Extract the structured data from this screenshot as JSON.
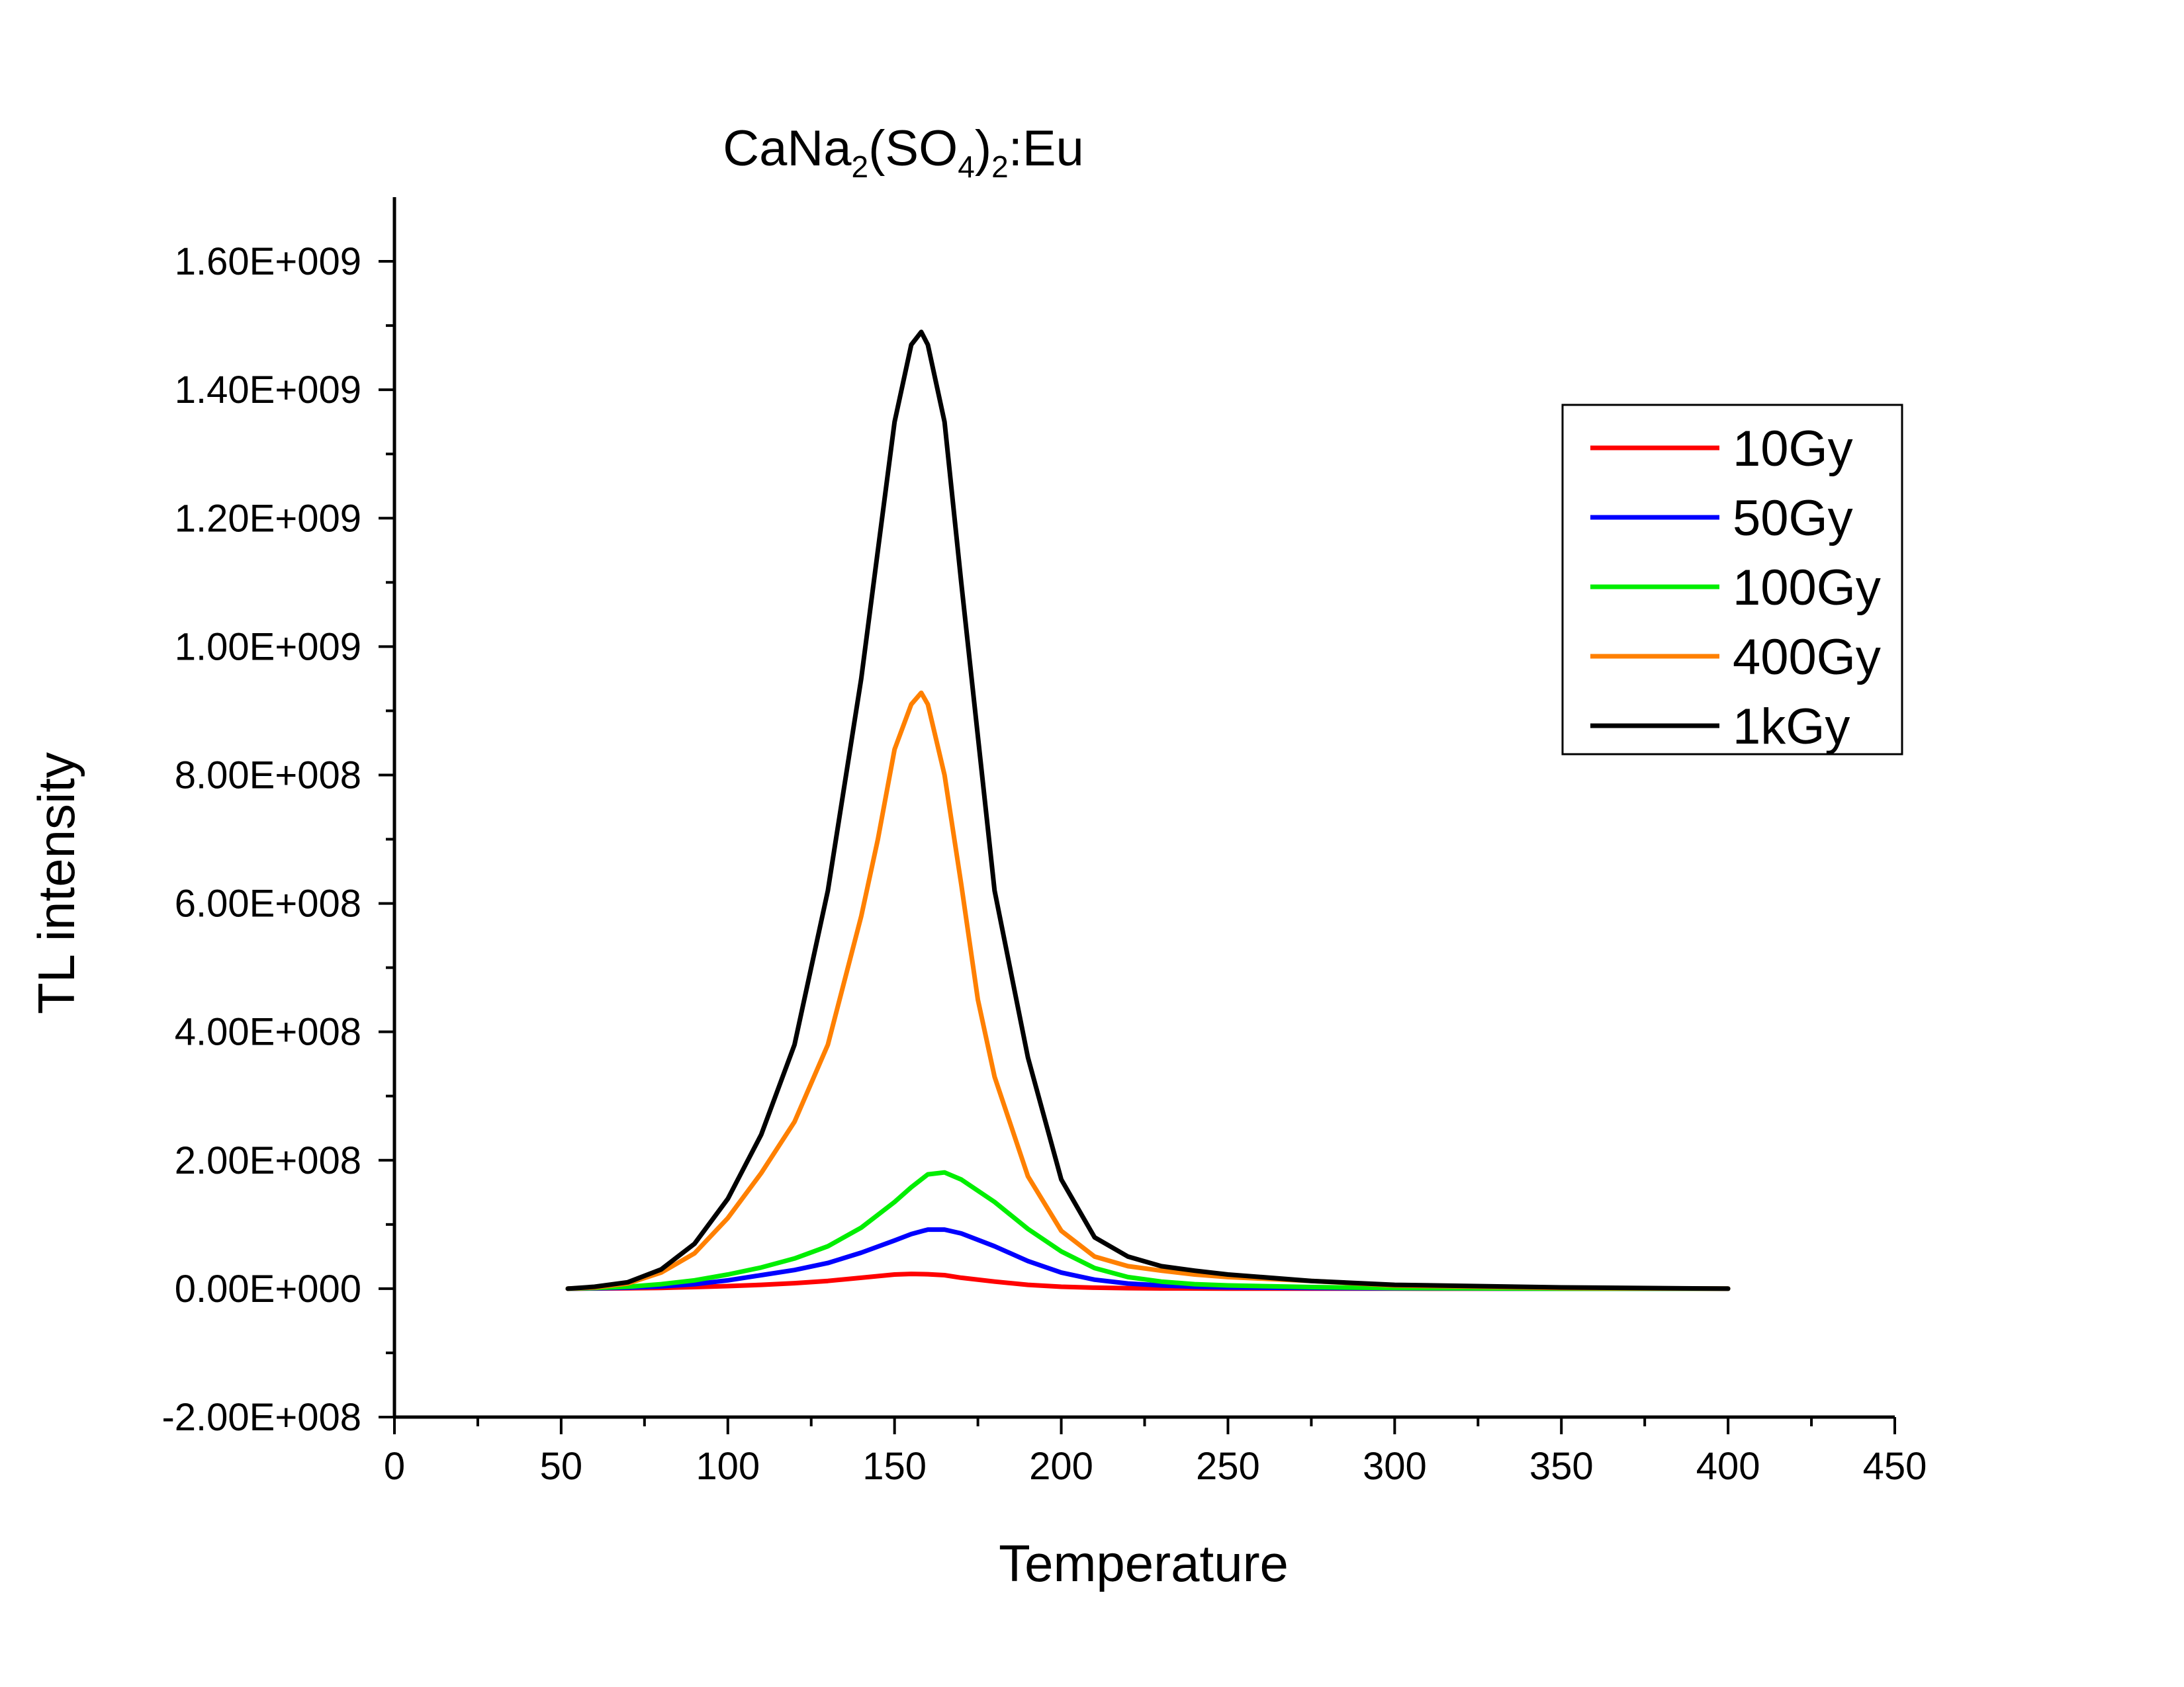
{
  "chart_data": {
    "type": "line",
    "title": {
      "parts": [
        {
          "text": "CaNa",
          "sub": false
        },
        {
          "text": "2",
          "sub": true
        },
        {
          "text": "(SO",
          "sub": false
        },
        {
          "text": "4",
          "sub": true
        },
        {
          "text": ")",
          "sub": false
        },
        {
          "text": "2",
          "sub": true
        },
        {
          "text": ":Eu",
          "sub": false
        }
      ]
    },
    "xlabel": "Temperature",
    "ylabel": "TL intensity",
    "xlim": [
      0,
      450
    ],
    "ylim": [
      -200000000,
      1700000000
    ],
    "x_ticks": [
      0,
      50,
      100,
      150,
      200,
      250,
      300,
      350,
      400,
      450
    ],
    "x_tick_labels": [
      "0",
      "50",
      "100",
      "150",
      "200",
      "250",
      "300",
      "350",
      "400",
      "450"
    ],
    "y_ticks": [
      -200000000,
      0,
      200000000,
      400000000,
      600000000,
      800000000,
      1000000000,
      1200000000,
      1400000000,
      1600000000
    ],
    "y_tick_labels": [
      "-2.00E+008",
      "0.00E+000",
      "2.00E+008",
      "4.00E+008",
      "6.00E+008",
      "8.00E+008",
      "1.00E+009",
      "1.20E+009",
      "1.40E+009",
      "1.60E+009"
    ],
    "grid": false,
    "legend_position": "top-right",
    "series": [
      {
        "name": "10Gy",
        "color": "#ff0000",
        "x": [
          52,
          60,
          70,
          80,
          90,
          100,
          110,
          120,
          130,
          140,
          150,
          155,
          160,
          165,
          170,
          180,
          190,
          200,
          210,
          220,
          230,
          250,
          300,
          350,
          400
        ],
        "y": [
          0,
          300000,
          600000,
          1200000,
          2500000,
          4000000,
          6000000,
          8500000,
          12000000,
          17000000,
          22000000,
          23000000,
          22500000,
          21000000,
          17000000,
          11000000,
          6000000,
          3000000,
          1500000,
          800000,
          400000,
          200000,
          50000,
          0,
          0
        ]
      },
      {
        "name": "50Gy",
        "color": "#0000ff",
        "x": [
          52,
          60,
          70,
          80,
          90,
          100,
          110,
          120,
          130,
          140,
          150,
          155,
          160,
          165,
          170,
          180,
          190,
          200,
          210,
          220,
          230,
          240,
          250,
          275,
          300,
          350,
          400
        ],
        "y": [
          0,
          500000,
          1500000,
          3500000,
          7000000,
          13000000,
          21000000,
          29000000,
          40000000,
          56000000,
          75000000,
          85000000,
          92000000,
          92000000,
          86000000,
          66000000,
          43000000,
          25000000,
          14000000,
          8000000,
          5000000,
          3000000,
          2000000,
          1000000,
          500000,
          0,
          0
        ]
      },
      {
        "name": "100Gy",
        "color": "#00ee00",
        "x": [
          52,
          60,
          70,
          80,
          90,
          100,
          110,
          120,
          130,
          140,
          150,
          155,
          160,
          165,
          170,
          180,
          190,
          200,
          210,
          220,
          230,
          240,
          250,
          275,
          300,
          350,
          400
        ],
        "y": [
          0,
          1000000,
          3000000,
          7000000,
          13000000,
          22000000,
          33000000,
          47000000,
          66000000,
          95000000,
          135000000,
          158000000,
          178000000,
          181000000,
          170000000,
          135000000,
          93000000,
          58000000,
          32000000,
          18000000,
          11000000,
          7000000,
          5000000,
          2500000,
          1000000,
          0,
          0
        ]
      },
      {
        "name": "400Gy",
        "color": "#ff8000",
        "x": [
          52,
          60,
          70,
          80,
          90,
          100,
          110,
          120,
          130,
          140,
          145,
          150,
          155,
          158,
          160,
          165,
          170,
          175,
          180,
          190,
          200,
          210,
          220,
          230,
          240,
          250,
          275,
          300,
          350,
          400
        ],
        "y": [
          0,
          2000000,
          8000000,
          25000000,
          55000000,
          110000000,
          180000000,
          260000000,
          380000000,
          580000000,
          700000000,
          840000000,
          910000000,
          928000000,
          910000000,
          800000000,
          630000000,
          450000000,
          330000000,
          175000000,
          90000000,
          50000000,
          35000000,
          28000000,
          22000000,
          18000000,
          12000000,
          5000000,
          1000000,
          0
        ]
      },
      {
        "name": "1kGy",
        "color": "#000000",
        "x": [
          52,
          60,
          70,
          80,
          90,
          100,
          110,
          120,
          130,
          140,
          145,
          150,
          155,
          158,
          160,
          165,
          170,
          175,
          180,
          190,
          200,
          210,
          220,
          230,
          240,
          250,
          275,
          300,
          350,
          400
        ],
        "y": [
          0,
          3000000,
          10000000,
          30000000,
          70000000,
          140000000,
          240000000,
          380000000,
          620000000,
          950000000,
          1150000000,
          1350000000,
          1470000000,
          1490000000,
          1470000000,
          1350000000,
          1100000000,
          860000000,
          620000000,
          360000000,
          170000000,
          80000000,
          50000000,
          35000000,
          28000000,
          22000000,
          12000000,
          6000000,
          2000000,
          0
        ]
      }
    ]
  }
}
